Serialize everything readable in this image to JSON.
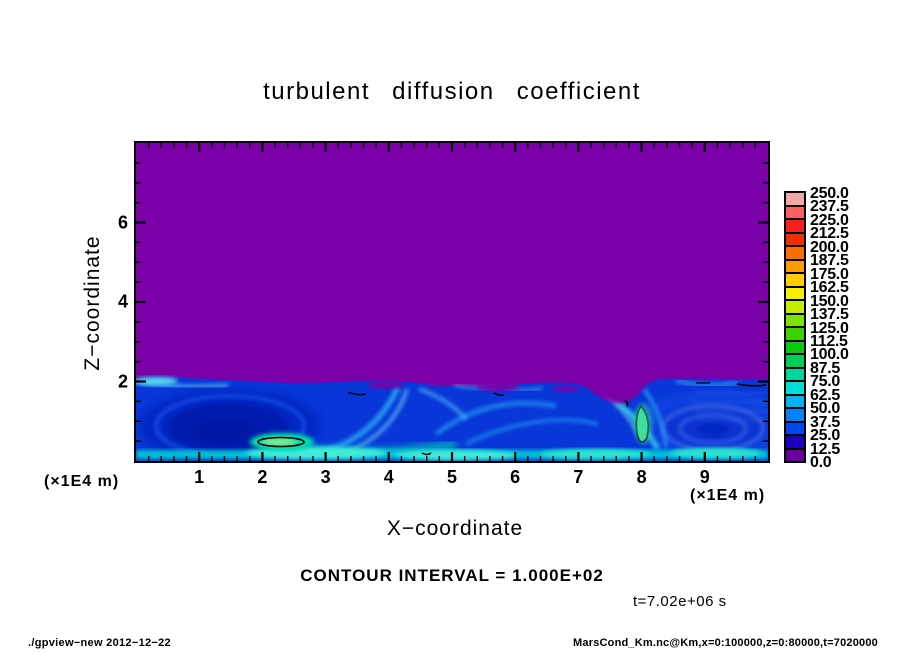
{
  "title": "turbulent diffusion coefficient",
  "annotations": {
    "contour_interval_text": "CONTOUR INTERVAL = 1.000E+02",
    "time_text": "t=7.02e+06 s"
  },
  "footer": {
    "left": "./gpview−new  2012−12−22",
    "right": "MarsCond_Km.nc@Km,x=0:100000,z=0:80000,t=7020000"
  },
  "chart_data": {
    "type": "heatmap",
    "title": "turbulent diffusion coefficient",
    "contour_interval": 100.0,
    "time_label": "t=7.02e+06 s",
    "x_axis": {
      "label": "X−coordinate",
      "units": "(×1E4 m)",
      "range": [
        0,
        10
      ],
      "tick_values": [
        1,
        2,
        3,
        4,
        5,
        6,
        7,
        8,
        9
      ],
      "tick_labels": [
        "1",
        "2",
        "3",
        "4",
        "5",
        "6",
        "7",
        "8",
        "9"
      ],
      "minor_tick_step": 0.2
    },
    "z_axis": {
      "label": "Z−coordinate",
      "units": "(×1E4 m)",
      "range": [
        0,
        8
      ],
      "tick_values": [
        2,
        4,
        6
      ],
      "tick_labels": [
        "2",
        "4",
        "6"
      ],
      "minor_tick_step": 0.5
    },
    "colorbar": {
      "labels": [
        "250.0",
        "237.5",
        "225.0",
        "212.5",
        "200.0",
        "187.5",
        "175.0",
        "162.5",
        "150.0",
        "137.5",
        "125.0",
        "112.5",
        "100.0",
        "87.5",
        "75.0",
        "62.5",
        "50.0",
        "37.5",
        "25.0",
        "12.5",
        "0.0"
      ],
      "colors_top_to_bottom": [
        "#f6a6a6",
        "#f66262",
        "#f62020",
        "#ee3000",
        "#f66e00",
        "#f99c00",
        "#fccb00",
        "#f7ef00",
        "#c2ee00",
        "#7de200",
        "#3ad300",
        "#0ac911",
        "#00cc58",
        "#00d6a0",
        "#00dcd6",
        "#00b4f2",
        "#0082f8",
        "#0048ec",
        "#1c00c0",
        "#6a00a0"
      ],
      "level_min": 0.0,
      "level_max": 250.0,
      "level_step": 12.5
    },
    "field_colors": {
      "background_purple": "#7a00a8",
      "layer_blue": "#0836d8",
      "vortex_dark_blue": "#041cb0",
      "filament_cyan": "#00c2f0",
      "bottom_strip_teal": "#00d2d4",
      "hotspot_green": "#4fe38c"
    },
    "field_summary": "Turbulent diffusion coefficient near zero (bottom color bin, purple) everywhere above z≈2×10^4 m; below z≈2×10^4 m a turbulent boundary layer with swirling filaments mostly 12.5–100 (blue–cyan), local maxima ≈100–150 (teal/green) near x≈2.3×10^4 m at z≈0.4×10^4 m and x≈8.0×10^4 m at z≈0.8×10^4 m, outlined by 100-contour lines; large vortices centered near x≈1.5×10^4 m and x≈8.7×10^4 m."
  }
}
